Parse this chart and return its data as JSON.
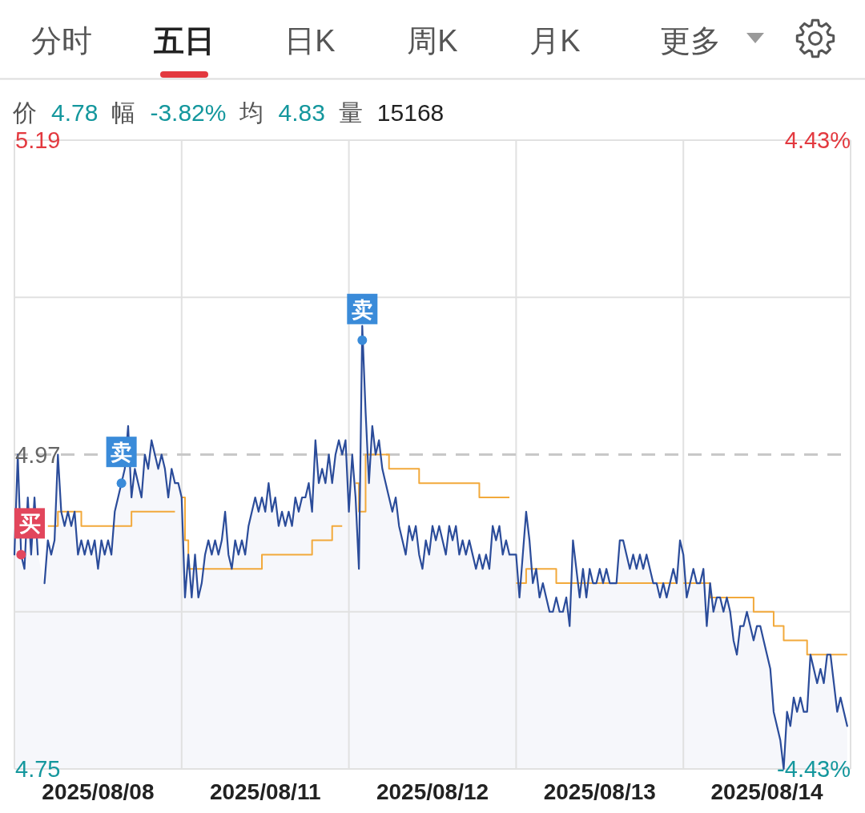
{
  "chart_data": {
    "type": "area",
    "annotations": [
      "分时",
      "五日",
      "日K",
      "周K",
      "月K",
      "更多",
      "价 4.78",
      "幅 -3.82%",
      "均 4.83",
      "量 15168"
    ],
    "categories": [
      null,
      null,
      null,
      null,
      null,
      null,
      null,
      null,
      null,
      null,
      null,
      null,
      null,
      null,
      null,
      null,
      null,
      null,
      null,
      null,
      null,
      null,
      null,
      null,
      null,
      "2025/08/08",
      null,
      null,
      null,
      null,
      null,
      null,
      null,
      null,
      null,
      null,
      null,
      null,
      null,
      null,
      null,
      null,
      null,
      null,
      null,
      null,
      null,
      null,
      null,
      null,
      null,
      null,
      null,
      null,
      null,
      null,
      null,
      null,
      null,
      null,
      null,
      null,
      null,
      null,
      null,
      null,
      null,
      null,
      null,
      null,
      null,
      null,
      null,
      null,
      null,
      "2025/08/11",
      null,
      null,
      null,
      null,
      null,
      null,
      null,
      null,
      null,
      null,
      null,
      null,
      null,
      null,
      null,
      null,
      null,
      null,
      null,
      null,
      null,
      null,
      null,
      null,
      null,
      null,
      null,
      null,
      null,
      null,
      null,
      null,
      null,
      null,
      null,
      null,
      null,
      null,
      null,
      null,
      null,
      null,
      null,
      null,
      null,
      null,
      null,
      null,
      null,
      "2025/08/12",
      null,
      null,
      null,
      null,
      null,
      null,
      null,
      null,
      null,
      null,
      null,
      null,
      null,
      null,
      null,
      null,
      null,
      null,
      null,
      null,
      null,
      null,
      null,
      null,
      null,
      null,
      null,
      null,
      null,
      null,
      null,
      null,
      null,
      null,
      null,
      null,
      null,
      null,
      null,
      null,
      null,
      null,
      null,
      null,
      null,
      null,
      null,
      null,
      null,
      "2025/08/13",
      null,
      null,
      null,
      null,
      null,
      null,
      null,
      null,
      null,
      null,
      null,
      null,
      null,
      null,
      null,
      null,
      null,
      null,
      null,
      null,
      null,
      null,
      null,
      null,
      null,
      null,
      null,
      null,
      null,
      null,
      null,
      null,
      null,
      null,
      null,
      null,
      null,
      null,
      null,
      null,
      null,
      null,
      null,
      null,
      null,
      null,
      null,
      null,
      null,
      "2025/08/14",
      null,
      null,
      null,
      null,
      null,
      null,
      null,
      null,
      null,
      null,
      null,
      null,
      null,
      null,
      null,
      null,
      null,
      null,
      null,
      null,
      null,
      null,
      null,
      null
    ],
    "ylim": [
      4.75,
      5.19
    ],
    "yticks": [
      5.19,
      {
        "value": 5.08,
        "label": null
      },
      4.97,
      {
        "value": 4.86,
        "label": null
      },
      4.75
    ],
    "y2lim": [
      -4.43,
      4.43
    ],
    "y2ticks": [
      {
        "value": 4.43,
        "label": "4.43%"
      },
      {
        "value": -4.43,
        "label": "-4.43%"
      }
    ],
    "grid": true,
    "ref_lines": [
      {
        "axis": "y",
        "value": 4.97,
        "color": "#c8c8c8",
        "line_style": "dashed"
      }
    ],
    "series": [
      {
        "type": "step",
        "color": "#f2a93b",
        "values": [
          null,
          null,
          null,
          null,
          null,
          null,
          null,
          null,
          null,
          null,
          4.92,
          4.92,
          4.92,
          4.93,
          4.93,
          4.93,
          4.93,
          4.93,
          4.93,
          4.93,
          4.92,
          4.92,
          4.92,
          4.92,
          4.92,
          4.92,
          4.92,
          4.92,
          4.92,
          4.92,
          4.92,
          4.92,
          4.92,
          4.92,
          4.92,
          4.93,
          4.93,
          4.93,
          4.93,
          4.93,
          4.93,
          4.93,
          4.93,
          4.93,
          4.93,
          4.93,
          4.93,
          4.93,
          4.93,
          null,
          4.94,
          4.91,
          4.89,
          4.89,
          4.89,
          4.89,
          4.89,
          4.89,
          4.89,
          4.89,
          4.89,
          4.89,
          4.89,
          4.89,
          4.89,
          4.89,
          4.89,
          4.89,
          4.89,
          4.89,
          4.89,
          4.89,
          4.89,
          4.89,
          4.9,
          4.9,
          4.9,
          4.9,
          4.9,
          4.9,
          4.9,
          4.9,
          4.9,
          4.9,
          4.9,
          4.9,
          4.9,
          4.9,
          4.9,
          4.91,
          4.91,
          4.91,
          4.91,
          4.91,
          4.91,
          4.92,
          4.92,
          4.92,
          4.92,
          null,
          null,
          null,
          4.95,
          4.93,
          4.93,
          4.97,
          4.97,
          4.97,
          4.97,
          4.97,
          4.97,
          4.97,
          4.96,
          4.96,
          4.96,
          4.96,
          4.96,
          4.96,
          4.96,
          4.96,
          4.96,
          4.95,
          4.95,
          4.95,
          4.95,
          4.95,
          4.95,
          4.95,
          4.95,
          4.95,
          4.95,
          4.95,
          4.95,
          4.95,
          4.95,
          4.95,
          4.95,
          4.95,
          4.95,
          4.94,
          4.94,
          4.94,
          4.94,
          4.94,
          4.94,
          4.94,
          4.94,
          4.94,
          4.94,
          null,
          4.88,
          4.88,
          4.88,
          4.89,
          4.89,
          4.89,
          4.89,
          4.89,
          4.89,
          4.89,
          4.89,
          4.89,
          4.88,
          4.88,
          4.88,
          4.88,
          4.88,
          4.88,
          4.88,
          4.88,
          4.88,
          4.88,
          4.88,
          4.88,
          4.88,
          4.88,
          4.88,
          4.88,
          4.88,
          4.88,
          4.88,
          4.88,
          4.88,
          4.88,
          4.88,
          4.88,
          4.88,
          4.88,
          4.88,
          4.88,
          4.88,
          4.88,
          4.88,
          4.88,
          4.88,
          4.88,
          4.88,
          4.88,
          4.88,
          null,
          4.88,
          4.88,
          4.88,
          4.88,
          4.88,
          4.88,
          4.88,
          4.88,
          4.87,
          4.87,
          4.87,
          4.87,
          4.87,
          4.87,
          4.87,
          4.87,
          4.87,
          4.87,
          4.87,
          4.87,
          4.87,
          4.86,
          4.86,
          4.86,
          4.86,
          4.86,
          4.86,
          4.85,
          4.85,
          4.85,
          4.84,
          4.84,
          4.84,
          4.84,
          4.84,
          4.84,
          4.84,
          4.83,
          4.83,
          4.83,
          4.83,
          4.83,
          4.83,
          4.83,
          4.83,
          4.83,
          4.83,
          4.83,
          4.83,
          4.83
        ]
      },
      {
        "color": "#2b4c9a",
        "values": [
          4.9,
          4.97,
          4.9,
          4.89,
          4.94,
          4.9,
          4.94,
          4.9,
          null,
          4.88,
          4.91,
          4.9,
          4.91,
          4.97,
          4.93,
          4.92,
          4.93,
          4.92,
          4.93,
          4.9,
          4.91,
          4.9,
          4.91,
          4.9,
          4.91,
          4.89,
          4.91,
          4.9,
          4.91,
          4.9,
          4.93,
          4.94,
          4.95,
          4.96,
          4.99,
          4.94,
          4.96,
          4.95,
          4.94,
          4.97,
          4.96,
          4.98,
          4.97,
          4.96,
          4.97,
          4.96,
          4.94,
          4.96,
          4.95,
          4.95,
          4.94,
          4.87,
          4.9,
          4.87,
          4.9,
          4.87,
          4.88,
          4.9,
          4.91,
          4.9,
          4.91,
          4.9,
          4.91,
          4.93,
          4.9,
          4.89,
          4.91,
          4.9,
          4.91,
          4.9,
          4.92,
          4.93,
          4.94,
          4.93,
          4.94,
          4.93,
          4.95,
          4.93,
          4.94,
          4.92,
          4.93,
          4.92,
          4.93,
          4.92,
          4.94,
          4.93,
          4.94,
          4.94,
          4.95,
          4.93,
          4.98,
          4.95,
          4.96,
          4.95,
          4.97,
          4.95,
          4.97,
          4.98,
          4.97,
          4.98,
          4.93,
          4.97,
          4.94,
          4.89,
          5.06,
          5.0,
          4.95,
          4.99,
          4.97,
          4.98,
          4.96,
          4.95,
          4.94,
          4.93,
          4.94,
          4.92,
          4.91,
          4.9,
          4.92,
          4.91,
          4.92,
          4.9,
          4.89,
          4.91,
          4.9,
          4.92,
          4.91,
          4.92,
          4.91,
          4.9,
          4.92,
          4.91,
          4.92,
          4.9,
          4.91,
          4.9,
          4.91,
          4.9,
          4.89,
          4.9,
          4.89,
          4.9,
          4.89,
          4.92,
          4.91,
          4.92,
          4.9,
          4.91,
          4.9,
          4.9,
          4.9,
          4.87,
          4.9,
          4.93,
          4.91,
          4.88,
          4.89,
          4.87,
          4.88,
          4.87,
          4.86,
          4.86,
          4.87,
          4.86,
          4.86,
          4.87,
          4.85,
          4.91,
          4.89,
          4.87,
          4.89,
          4.87,
          4.89,
          4.88,
          4.88,
          4.89,
          4.88,
          4.89,
          4.88,
          4.88,
          4.88,
          4.91,
          4.91,
          4.9,
          4.89,
          4.9,
          4.89,
          4.9,
          4.89,
          4.9,
          4.89,
          4.88,
          4.88,
          4.87,
          4.88,
          4.87,
          4.88,
          4.89,
          4.88,
          4.91,
          4.9,
          4.87,
          4.88,
          4.89,
          4.88,
          4.88,
          4.89,
          4.85,
          4.88,
          4.86,
          4.87,
          4.87,
          4.86,
          4.87,
          4.86,
          4.84,
          4.83,
          4.85,
          4.85,
          4.86,
          4.85,
          4.84,
          4.85,
          4.85,
          4.84,
          4.83,
          4.82,
          4.79,
          4.78,
          4.77,
          4.75,
          4.79,
          4.78,
          4.8,
          4.79,
          4.8,
          4.79,
          4.79,
          4.83,
          4.82,
          4.81,
          4.82,
          4.81,
          4.83,
          4.83,
          4.81,
          4.79,
          4.8,
          4.79,
          4.78
        ]
      },
      {
        "type": "scatter",
        "values": [
          null,
          null,
          4.9,
          null,
          null,
          null,
          null,
          null,
          null,
          null,
          null,
          null,
          null,
          null,
          null,
          null,
          null,
          null,
          null,
          null,
          null,
          null,
          null,
          null,
          null,
          null,
          null,
          null,
          null,
          null,
          null,
          null,
          4.95,
          null,
          null,
          null,
          null,
          null,
          null,
          null,
          null,
          null,
          null,
          null,
          null,
          null,
          null,
          null,
          null,
          null,
          null,
          null,
          null,
          null,
          null,
          null,
          null,
          null,
          null,
          null,
          null,
          null,
          null,
          null,
          null,
          null,
          null,
          null,
          null,
          null,
          null,
          null,
          null,
          null,
          null,
          null,
          null,
          null,
          null,
          null,
          null,
          null,
          null,
          null,
          null,
          null,
          null,
          null,
          null,
          null,
          null,
          null,
          null,
          null,
          null,
          null,
          null,
          null,
          null,
          null,
          null,
          null,
          null,
          null,
          5.05,
          null,
          null,
          null,
          null,
          null,
          null,
          null,
          null,
          null,
          null,
          null,
          null,
          null,
          null,
          null,
          null,
          null,
          null,
          null,
          null,
          null,
          null,
          null,
          null,
          null,
          null,
          null,
          null,
          null,
          null,
          null,
          null,
          null,
          null,
          null,
          null,
          null,
          null,
          null,
          null,
          null,
          null,
          null,
          null,
          null,
          null,
          null,
          null,
          null,
          null,
          null,
          null,
          null,
          null,
          null,
          null,
          null,
          null,
          null,
          null,
          null,
          null,
          null,
          null,
          null,
          null,
          null,
          null,
          null,
          null,
          null,
          null,
          null,
          null,
          null,
          null,
          null,
          null,
          null,
          null,
          null,
          null,
          null,
          null,
          null,
          null,
          null,
          null,
          null,
          null,
          null,
          null,
          null,
          null,
          null,
          null,
          null,
          null,
          null,
          null,
          null,
          null,
          null,
          null,
          null,
          null,
          null,
          null,
          null,
          null,
          null,
          null,
          null,
          null,
          null,
          null,
          null,
          null,
          null,
          null,
          null,
          null,
          null,
          null,
          null,
          null,
          null,
          null,
          null,
          null,
          null,
          null,
          null,
          null,
          null,
          null,
          null,
          null,
          null,
          null,
          null,
          null,
          null,
          null,
          null
        ],
        "value_labels": [
          null,
          null,
          "买",
          null,
          null,
          null,
          null,
          null,
          null,
          null,
          null,
          null,
          null,
          null,
          null,
          null,
          null,
          null,
          null,
          null,
          null,
          null,
          null,
          null,
          null,
          null,
          null,
          null,
          null,
          null,
          null,
          null,
          "卖",
          null,
          null,
          null,
          null,
          null,
          null,
          null,
          null,
          null,
          null,
          null,
          null,
          null,
          null,
          null,
          null,
          null,
          null,
          null,
          null,
          null,
          null,
          null,
          null,
          null,
          null,
          null,
          null,
          null,
          null,
          null,
          null,
          null,
          null,
          null,
          null,
          null,
          null,
          null,
          null,
          null,
          null,
          null,
          null,
          null,
          null,
          null,
          null,
          null,
          null,
          null,
          null,
          null,
          null,
          null,
          null,
          null,
          null,
          null,
          null,
          null,
          null,
          null,
          null,
          null,
          null,
          null,
          null,
          null,
          null,
          null,
          "卖",
          null,
          null,
          null,
          null,
          null,
          null,
          null,
          null,
          null,
          null,
          null,
          null,
          null,
          null,
          null,
          null,
          null,
          null,
          null,
          null,
          null,
          null,
          null,
          null,
          null,
          null,
          null,
          null,
          null,
          null,
          null,
          null,
          null,
          null,
          null,
          null,
          null,
          null,
          null,
          null,
          null,
          null,
          null,
          null,
          null,
          null,
          null,
          null,
          null,
          null,
          null,
          null,
          null,
          null,
          null,
          null,
          null,
          null,
          null,
          null,
          null,
          null,
          null,
          null,
          null,
          null,
          null,
          null,
          null,
          null,
          null,
          null,
          null,
          null,
          null,
          null,
          null,
          null,
          null,
          null,
          null,
          null,
          null,
          null,
          null,
          null,
          null,
          null,
          null,
          null,
          null,
          null,
          null,
          null,
          null,
          null,
          null,
          null,
          null,
          null,
          null,
          null,
          null,
          null,
          null,
          null,
          null,
          null,
          null,
          null,
          null,
          null,
          null,
          null,
          null,
          null,
          null,
          null,
          null,
          null,
          null,
          null,
          null,
          null,
          null,
          null,
          null,
          null,
          null,
          null,
          null,
          null,
          null,
          null,
          null,
          null,
          null,
          null,
          null,
          null,
          null,
          null,
          null,
          null,
          null
        ],
        "colors": [
          null,
          null,
          "#e2465c",
          null,
          null,
          null,
          null,
          null,
          null,
          null,
          null,
          null,
          null,
          null,
          null,
          null,
          null,
          null,
          null,
          null,
          null,
          null,
          null,
          null,
          null,
          null,
          null,
          null,
          null,
          null,
          null,
          null,
          "#3a8bd9",
          null,
          null,
          null,
          null,
          null,
          null,
          null,
          null,
          null,
          null,
          null,
          null,
          null,
          null,
          null,
          null,
          null,
          null,
          null,
          null,
          null,
          null,
          null,
          null,
          null,
          null,
          null,
          null,
          null,
          null,
          null,
          null,
          null,
          null,
          null,
          null,
          null,
          null,
          null,
          null,
          null,
          null,
          null,
          null,
          null,
          null,
          null,
          null,
          null,
          null,
          null,
          null,
          null,
          null,
          null,
          null,
          null,
          null,
          null,
          null,
          null,
          null,
          null,
          null,
          null,
          null,
          null,
          null,
          null,
          null,
          null,
          "#3a8bd9",
          null,
          null,
          null,
          null,
          null,
          null,
          null,
          null,
          null,
          null,
          null,
          null,
          null,
          null,
          null,
          null,
          null,
          null,
          null,
          null,
          null,
          null,
          null,
          null,
          null,
          null,
          null,
          null,
          null,
          null,
          null,
          null,
          null,
          null,
          null,
          null,
          null,
          null,
          null,
          null,
          null,
          null,
          null,
          null,
          null,
          null,
          null,
          null,
          null,
          null,
          null,
          null,
          null,
          null,
          null,
          null,
          null,
          null,
          null,
          null,
          null,
          null,
          null,
          null,
          null,
          null,
          null,
          null,
          null,
          null,
          null,
          null,
          null,
          null,
          null,
          null,
          null,
          null,
          null,
          null,
          null,
          null,
          null,
          null,
          null,
          null,
          null,
          null,
          null,
          null,
          null,
          null,
          null,
          null,
          null,
          null,
          null,
          null,
          null,
          null,
          null,
          null,
          null,
          null,
          null,
          null,
          null,
          null,
          null,
          null,
          null,
          null,
          null,
          null,
          null,
          null,
          null,
          null,
          null,
          null,
          null,
          null,
          null,
          null,
          null,
          null,
          null,
          null,
          null,
          null,
          null,
          null,
          null,
          null,
          null,
          null,
          null,
          null,
          null,
          null,
          null,
          null,
          null,
          null,
          null
        ]
      }
    ]
  }
}
